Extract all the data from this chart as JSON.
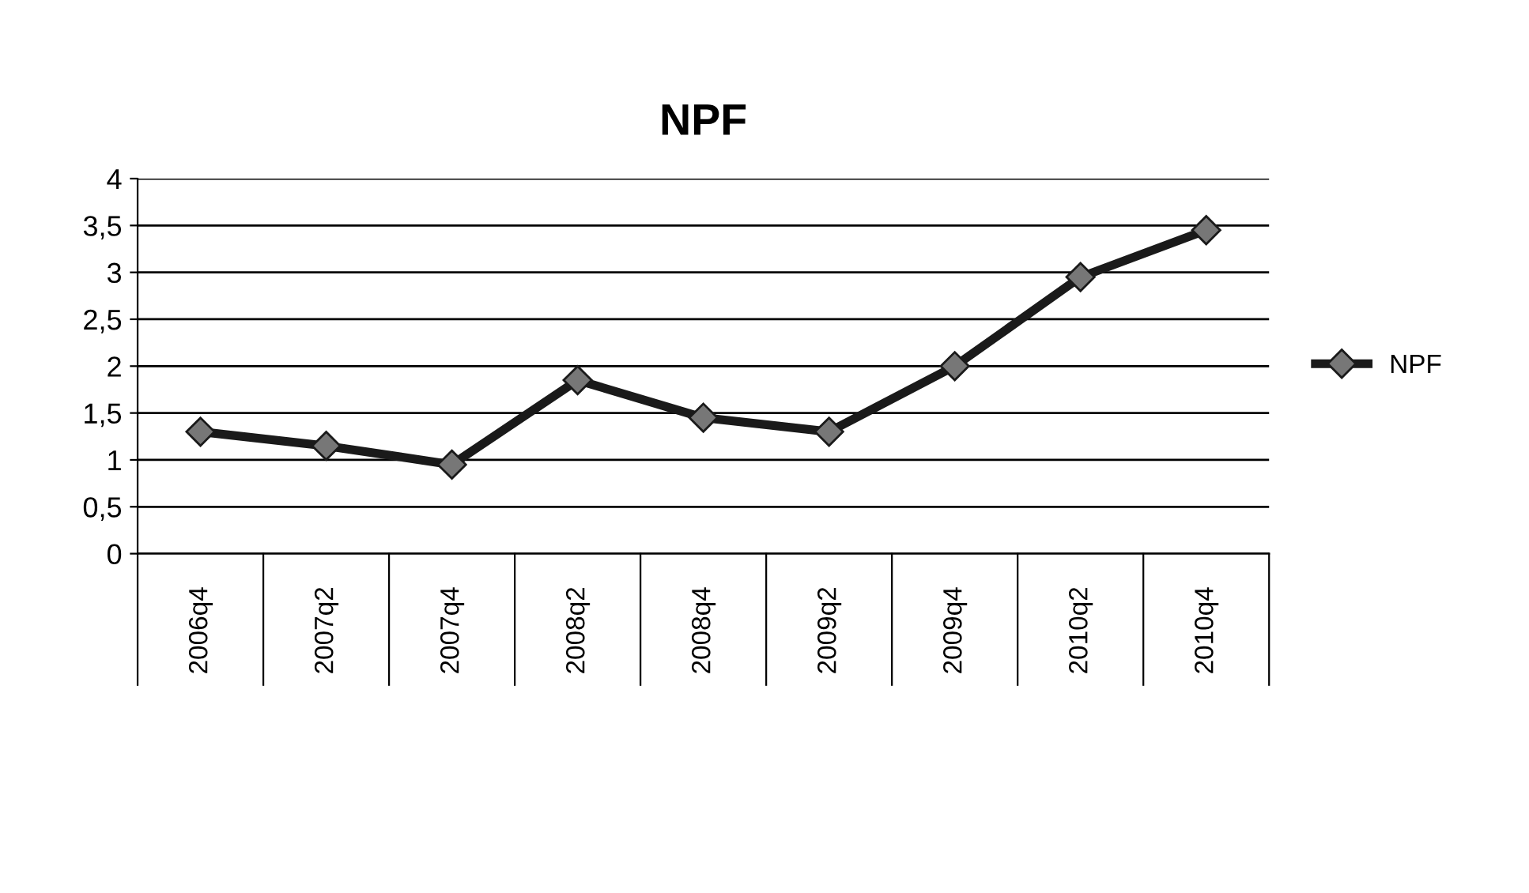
{
  "chart_data": {
    "type": "line",
    "title": "NPF",
    "categories": [
      "2006q4",
      "2007q2",
      "2007q4",
      "2008q2",
      "2008q4",
      "2009q2",
      "2009q4",
      "2010q2",
      "2010q4"
    ],
    "series": [
      {
        "name": "NPF",
        "color": "#1a1a1a",
        "values": [
          1.3,
          1.15,
          0.95,
          1.85,
          1.45,
          1.3,
          2.0,
          2.95,
          3.45
        ]
      }
    ],
    "ylim": [
      0,
      4
    ],
    "yticks": [
      0,
      {
        "value": 0.5,
        "label": "0,5"
      },
      1,
      {
        "value": 1.5,
        "label": "1,5"
      },
      2,
      {
        "value": 2.5,
        "label": "2,5"
      },
      3,
      {
        "value": 3.5,
        "label": "3,5"
      },
      4
    ],
    "grid": "y",
    "legend": "right",
    "marker": "diamond",
    "line_style": "solid"
  }
}
